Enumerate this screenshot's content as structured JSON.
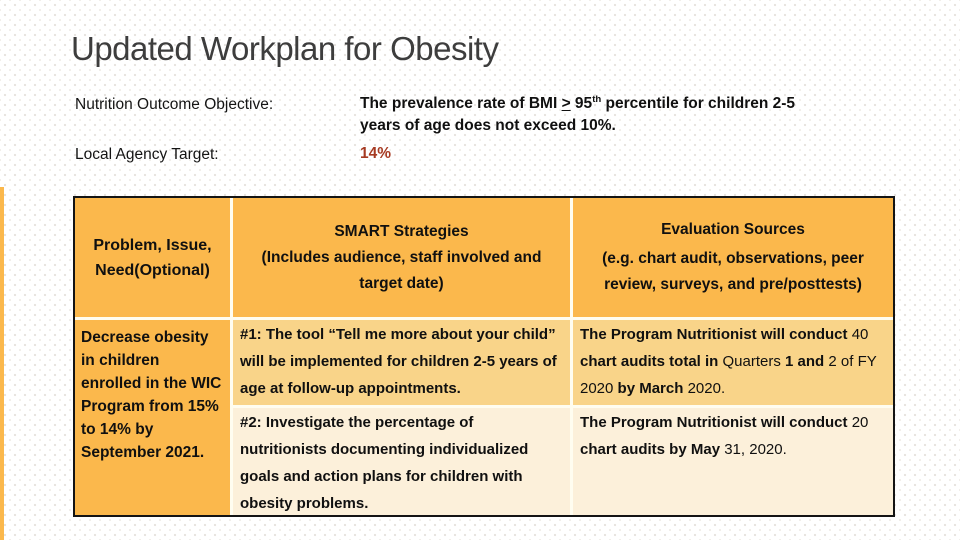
{
  "slide": {
    "title": "Updated Workplan for Obesity",
    "objective_label": "Nutrition Outcome Objective:",
    "target_label": "Local Agency Target:",
    "objective_segments": [
      {
        "t": "The prevalence rate of BMI "
      },
      {
        "t": ">",
        "u": true
      },
      {
        "t": " 95"
      },
      {
        "t": "th",
        "sup": true
      },
      {
        "t": " percentile for children 2-5\nyears of age does not exceed 10%."
      }
    ],
    "target_value": "14%"
  },
  "table": {
    "headers": [
      {
        "title": "Problem, Issue,\nNeed(Optional)"
      },
      {
        "title": "SMART Strategies\n(Includes audience, staff involved and\ntarget date)"
      },
      {
        "title": "Evaluation Sources",
        "subtitle": "(e.g. chart audit, observations, peer\nreview, surveys, and pre/posttests)"
      }
    ],
    "problem_cell": "Decrease obesity\nin children\nenrolled in the WIC\nProgram from 15%\nto 14% by\nSeptember 2021.",
    "rows": [
      {
        "strategy": "#1: The tool “Tell me more about your child”\nwill be implemented for children 2-5 years of\nage at follow-up appointments.",
        "evaluation_segments": [
          {
            "t": "The Program Nutritionist will conduct ",
            "b": true
          },
          {
            "t": "40",
            "b": false
          },
          {
            "t": "\nchart audits total in ",
            "b": true
          },
          {
            "t": "Quarters ",
            "b": false
          },
          {
            "t": "1 and ",
            "b": true
          },
          {
            "t": "2 of FY\n2020 ",
            "b": false
          },
          {
            "t": "by March ",
            "b": true
          },
          {
            "t": "2020.",
            "b": false
          }
        ]
      },
      {
        "strategy": "#2: Investigate the percentage of\nnutritionists documenting individualized\ngoals and action plans for children with\nobesity problems.",
        "evaluation_segments": [
          {
            "t": "The Program Nutritionist will conduct ",
            "b": true
          },
          {
            "t": "20",
            "b": false
          },
          {
            "t": "\nchart audits by May ",
            "b": true
          },
          {
            "t": "31, 2020.",
            "b": false
          }
        ]
      }
    ]
  },
  "colors": {
    "header_bg": "#FBB84C",
    "row1_bg": "#F9D489",
    "row2_bg": "#FCF0DA",
    "target_accent": "#A63A22",
    "border": "#141414"
  }
}
